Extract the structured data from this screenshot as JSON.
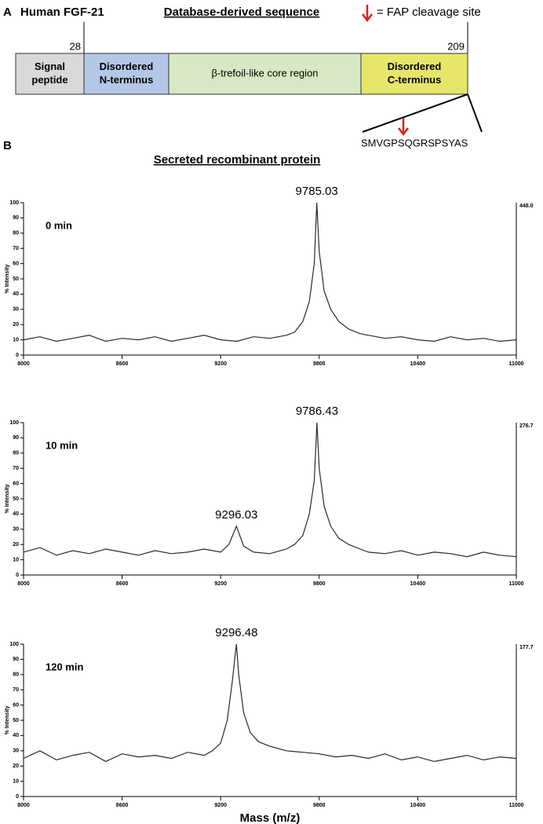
{
  "diagram": {
    "panel": "A",
    "protein": "Human FGF-21",
    "heading": "Database-derived sequence",
    "legend": "= FAP cleavage site",
    "positions": [
      "28",
      "209"
    ],
    "domains": [
      {
        "lines": [
          "Signal",
          "peptide"
        ]
      },
      {
        "lines": [
          "Disordered",
          "N-terminus"
        ]
      },
      {
        "lines": [
          "β-trefoil-like core region"
        ]
      },
      {
        "lines": [
          "Disordered",
          "C-terminus"
        ]
      }
    ],
    "sequence": "SMVGPSQGRSPSYAS"
  },
  "spectra_panel": "B",
  "spectra_title": "Secreted recombinant protein",
  "chart_data": [
    {
      "type": "line",
      "time": "0 min",
      "ylabel": "% Intensity",
      "max_counts": "448.0",
      "peaks": [
        9785.03
      ],
      "xlim": [
        8000,
        11000
      ],
      "xticks": [
        8000,
        8600,
        9200,
        9800,
        10400,
        11000
      ],
      "ylim": [
        0,
        100
      ],
      "yticks": [
        0,
        10,
        20,
        30,
        40,
        50,
        60,
        70,
        80,
        90,
        100
      ],
      "x": [
        8000,
        8100,
        8200,
        8300,
        8400,
        8500,
        8600,
        8700,
        8800,
        8900,
        9000,
        9100,
        9200,
        9300,
        9400,
        9500,
        9600,
        9650,
        9700,
        9740,
        9770,
        9785,
        9800,
        9830,
        9870,
        9920,
        9980,
        10050,
        10100,
        10200,
        10300,
        10400,
        10500,
        10600,
        10700,
        10800,
        10900,
        11000
      ],
      "series": [
        {
          "name": "spectrum",
          "color": "#2a2a2a",
          "values": [
            10,
            12,
            9,
            11,
            13,
            9,
            11,
            10,
            12,
            9,
            11,
            13,
            10,
            9,
            12,
            11,
            13,
            15,
            22,
            35,
            60,
            100,
            68,
            42,
            30,
            22,
            17,
            14,
            13,
            11,
            12,
            10,
            9,
            12,
            10,
            11,
            9,
            10
          ]
        }
      ]
    },
    {
      "type": "line",
      "time": "10 min",
      "ylabel": "% Intensity",
      "max_counts": "276.7",
      "peaks": [
        9786.43,
        9296.03
      ],
      "xlim": [
        8000,
        11000
      ],
      "xticks": [
        8000,
        8600,
        9200,
        9800,
        10400,
        11000
      ],
      "ylim": [
        0,
        100
      ],
      "yticks": [
        0,
        10,
        20,
        30,
        40,
        50,
        60,
        70,
        80,
        90,
        100
      ],
      "x": [
        8000,
        8100,
        8200,
        8300,
        8400,
        8500,
        8600,
        8700,
        8800,
        8900,
        9000,
        9100,
        9200,
        9250,
        9296,
        9340,
        9400,
        9500,
        9600,
        9650,
        9700,
        9740,
        9770,
        9786,
        9800,
        9830,
        9870,
        9920,
        9980,
        10050,
        10100,
        10200,
        10300,
        10400,
        10500,
        10600,
        10700,
        10800,
        10900,
        11000
      ],
      "series": [
        {
          "name": "spectrum",
          "color": "#2a2a2a",
          "values": [
            15,
            18,
            13,
            16,
            14,
            17,
            15,
            13,
            16,
            14,
            15,
            17,
            15,
            20,
            32,
            19,
            15,
            14,
            17,
            20,
            26,
            40,
            62,
            100,
            70,
            45,
            32,
            24,
            20,
            17,
            15,
            14,
            16,
            13,
            15,
            14,
            12,
            15,
            13,
            12
          ]
        }
      ]
    },
    {
      "type": "line",
      "time": "120 min",
      "ylabel": "% Intensity",
      "max_counts": "177.7",
      "peaks": [
        9296.48
      ],
      "xlabel": "Mass (m/z)",
      "xlim": [
        8000,
        11000
      ],
      "xticks": [
        8000,
        8600,
        9200,
        9800,
        10400,
        11000
      ],
      "ylim": [
        0,
        100
      ],
      "yticks": [
        0,
        10,
        20,
        30,
        40,
        50,
        60,
        70,
        80,
        90,
        100
      ],
      "x": [
        8000,
        8100,
        8200,
        8300,
        8400,
        8500,
        8600,
        8700,
        8800,
        8900,
        9000,
        9100,
        9150,
        9200,
        9240,
        9270,
        9296,
        9310,
        9340,
        9380,
        9430,
        9500,
        9600,
        9700,
        9800,
        9900,
        10000,
        10100,
        10200,
        10300,
        10400,
        10500,
        10600,
        10700,
        10800,
        10900,
        11000
      ],
      "series": [
        {
          "name": "spectrum",
          "color": "#2a2a2a",
          "values": [
            25,
            30,
            24,
            27,
            29,
            23,
            28,
            26,
            27,
            25,
            29,
            27,
            30,
            35,
            50,
            75,
            100,
            80,
            55,
            42,
            36,
            33,
            30,
            29,
            28,
            26,
            27,
            25,
            28,
            24,
            26,
            23,
            25,
            27,
            24,
            26,
            25
          ]
        }
      ]
    }
  ]
}
